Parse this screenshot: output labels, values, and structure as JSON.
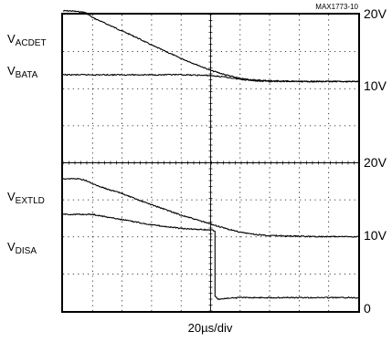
{
  "chart_data": {
    "type": "line",
    "tag": "MAX1773-10",
    "xlabel": "20µs/div",
    "x_divisions": 10,
    "x_range_us": [
      0,
      200
    ],
    "panels": [
      {
        "name": "top",
        "right_ticks": [
          {
            "value": 20,
            "label": "20V"
          },
          {
            "value": 10,
            "label": "10V"
          }
        ],
        "series": [
          {
            "label_main": "V",
            "label_sub": "ACDET",
            "points": [
              [
                0,
                20.5
              ],
              [
                5,
                20.5
              ],
              [
                10,
                20.4
              ],
              [
                15,
                20.3
              ],
              [
                20,
                19.6
              ],
              [
                30,
                18.7
              ],
              [
                40,
                17.8
              ],
              [
                50,
                16.9
              ],
              [
                60,
                15.9
              ],
              [
                70,
                15.0
              ],
              [
                80,
                14.1
              ],
              [
                90,
                13.3
              ],
              [
                100,
                12.5
              ],
              [
                110,
                11.9
              ],
              [
                120,
                11.4
              ],
              [
                130,
                11.2
              ],
              [
                140,
                11.1
              ],
              [
                160,
                11.0
              ],
              [
                180,
                11.0
              ],
              [
                200,
                11.0
              ]
            ]
          },
          {
            "label_main": "V",
            "label_sub": "BATA",
            "points": [
              [
                0,
                11.9
              ],
              [
                20,
                11.9
              ],
              [
                40,
                11.9
              ],
              [
                60,
                11.9
              ],
              [
                80,
                11.9
              ],
              [
                100,
                11.8
              ],
              [
                110,
                11.6
              ],
              [
                120,
                11.3
              ],
              [
                130,
                11.1
              ],
              [
                140,
                11.0
              ],
              [
                160,
                11.0
              ],
              [
                180,
                11.0
              ],
              [
                200,
                11.0
              ]
            ]
          }
        ]
      },
      {
        "name": "bottom",
        "right_ticks": [
          {
            "value": 20,
            "label": "20V"
          },
          {
            "value": 10,
            "label": "10V"
          },
          {
            "value": 0,
            "label": "0"
          }
        ],
        "series": [
          {
            "label_main": "V",
            "label_sub": "EXTLD",
            "points": [
              [
                0,
                17.8
              ],
              [
                10,
                17.8
              ],
              [
                15,
                17.6
              ],
              [
                20,
                17.1
              ],
              [
                30,
                16.4
              ],
              [
                40,
                15.8
              ],
              [
                50,
                15.0
              ],
              [
                60,
                14.3
              ],
              [
                70,
                13.6
              ],
              [
                80,
                12.9
              ],
              [
                90,
                12.3
              ],
              [
                100,
                11.7
              ],
              [
                110,
                11.1
              ],
              [
                120,
                10.6
              ],
              [
                130,
                10.3
              ],
              [
                140,
                10.15
              ],
              [
                160,
                10.05
              ],
              [
                180,
                10.0
              ],
              [
                200,
                10.0
              ]
            ]
          },
          {
            "label_main": "V",
            "label_sub": "DISA",
            "points": [
              [
                0,
                13.0
              ],
              [
                20,
                13.0
              ],
              [
                40,
                12.3
              ],
              [
                60,
                11.6
              ],
              [
                80,
                11.1
              ],
              [
                100,
                10.9
              ],
              [
                103,
                10.8
              ],
              [
                103,
                2.0
              ],
              [
                105,
                1.6
              ],
              [
                120,
                1.8
              ],
              [
                140,
                1.8
              ],
              [
                160,
                1.8
              ],
              [
                180,
                1.8
              ],
              [
                200,
                1.8
              ]
            ]
          }
        ]
      }
    ]
  }
}
